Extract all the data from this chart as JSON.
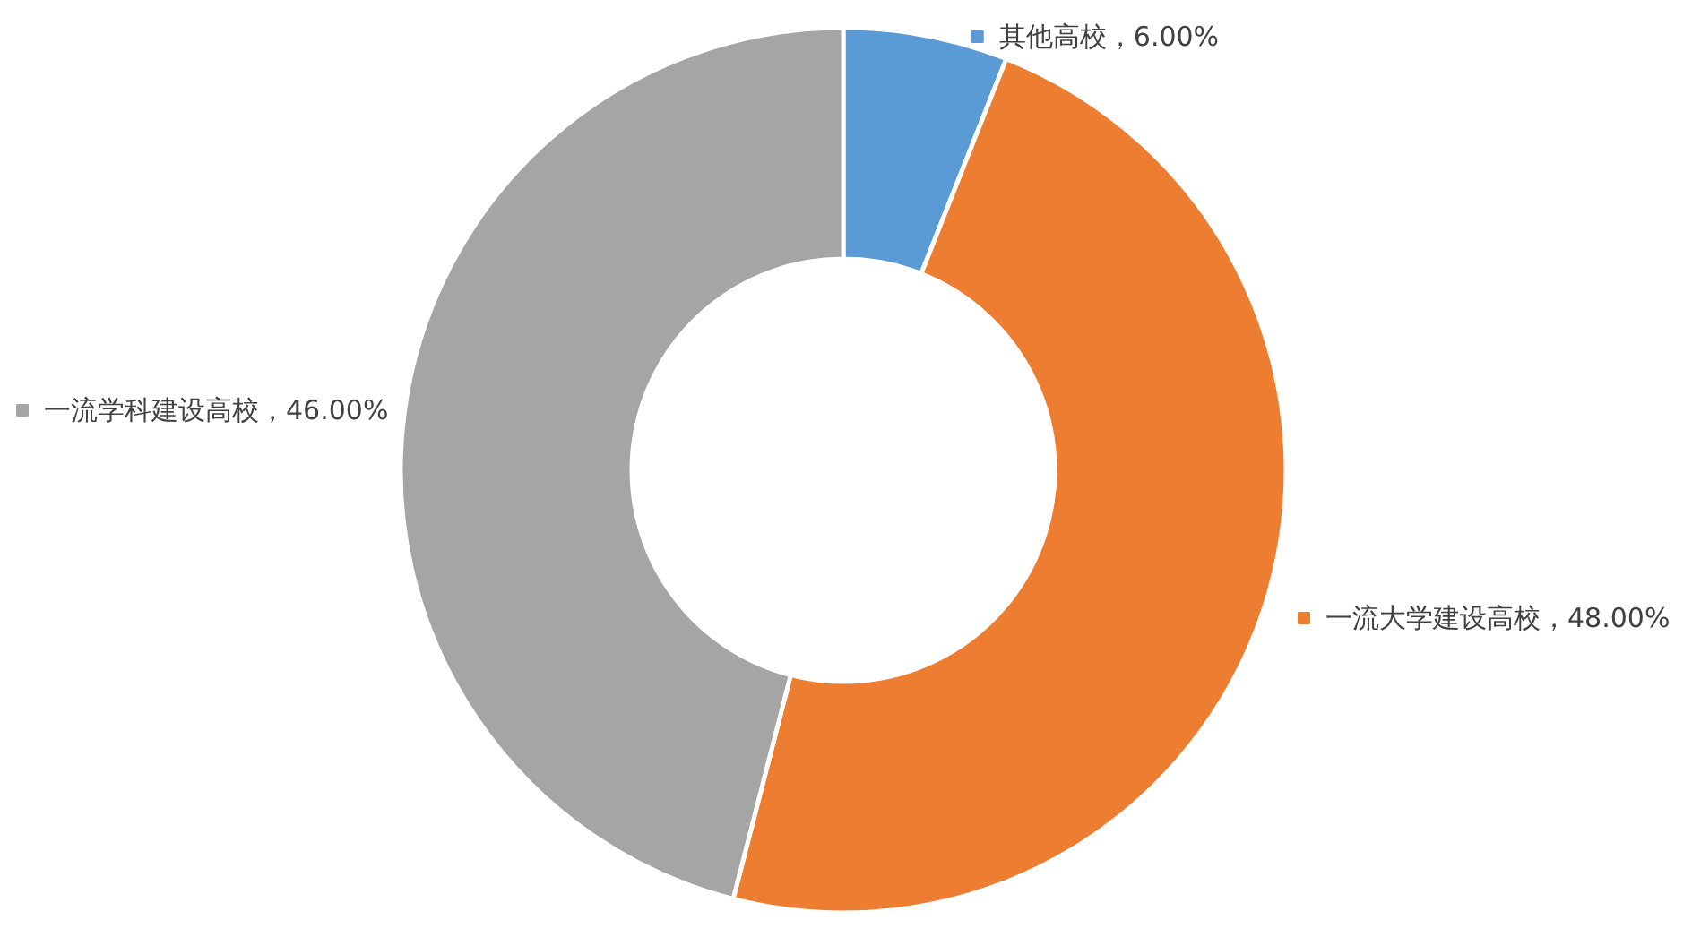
{
  "chart_data": {
    "type": "donut",
    "categories": [
      "其他高校",
      "一流大学建设高校",
      "一流学科建设高校"
    ],
    "values": [
      6,
      48,
      46
    ],
    "value_labels": [
      "6.00%",
      "48.00%",
      "46.00%"
    ],
    "colors": [
      "#5b9bd5",
      "#ed7d31",
      "#a5a5a5"
    ],
    "legend": "top"
  }
}
